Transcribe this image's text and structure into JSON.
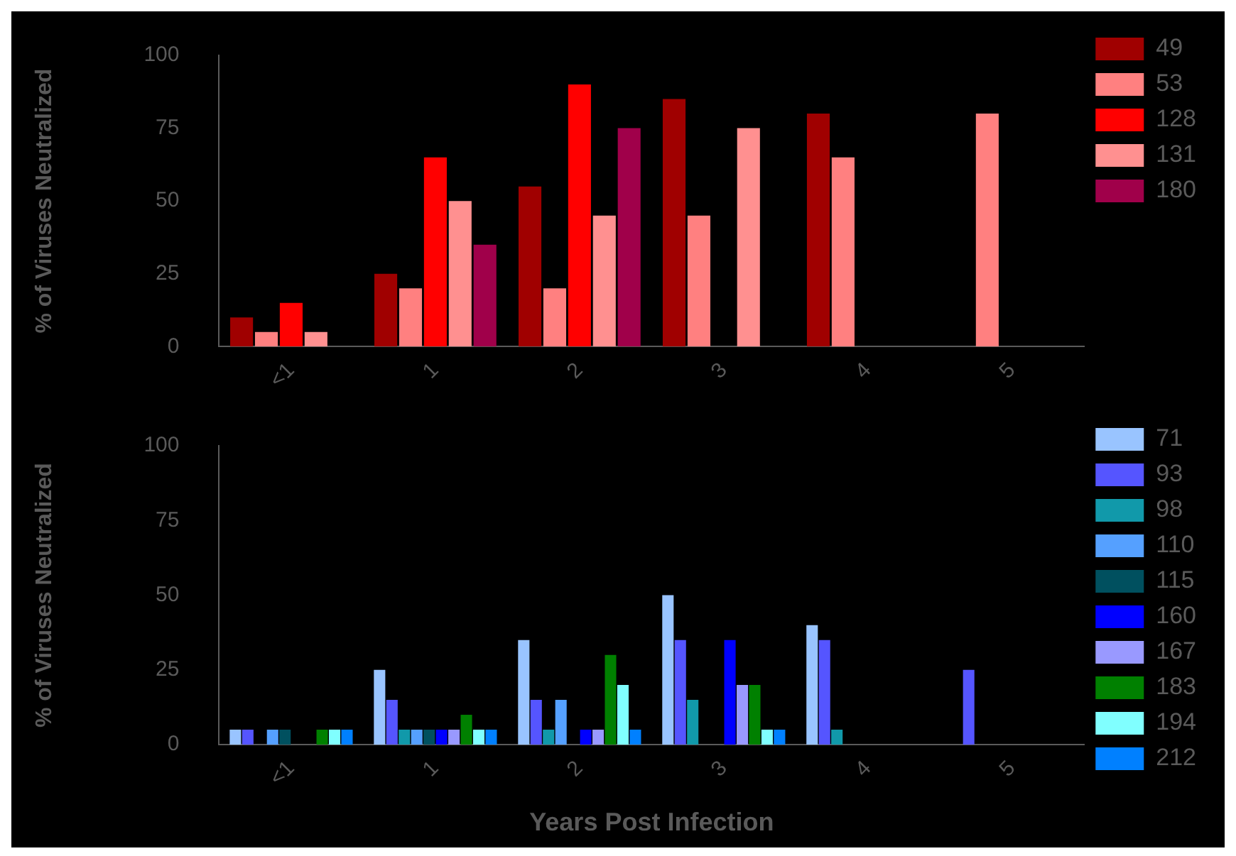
{
  "chart_data": [
    {
      "type": "bar",
      "ylabel": "% of Viruses Neutralized",
      "categories": [
        "<1",
        "1",
        "2",
        "3",
        "4",
        "5"
      ],
      "ylim": [
        0,
        100
      ],
      "yticks": [
        0,
        25,
        50,
        75,
        100
      ],
      "grid": false,
      "legend": "right",
      "series": [
        {
          "name": "49",
          "color": "#a00000",
          "values": [
            10,
            25,
            55,
            85,
            80,
            null
          ]
        },
        {
          "name": "53",
          "color": "#ff8080",
          "values": [
            5,
            20,
            20,
            45,
            65,
            80
          ]
        },
        {
          "name": "128",
          "color": "#ff0000",
          "values": [
            15,
            65,
            90,
            null,
            null,
            null
          ]
        },
        {
          "name": "131",
          "color": "#ff9090",
          "values": [
            5,
            50,
            45,
            75,
            null,
            null
          ]
        },
        {
          "name": "180",
          "color": "#a0004a",
          "values": [
            null,
            35,
            75,
            null,
            null,
            null
          ]
        }
      ]
    },
    {
      "type": "bar",
      "xlabel": "Years Post Infection",
      "ylabel": "% of Viruses Neutralized",
      "categories": [
        "<1",
        "1",
        "2",
        "3",
        "4",
        "5"
      ],
      "ylim": [
        0,
        100
      ],
      "yticks": [
        0,
        25,
        50,
        75,
        100
      ],
      "grid": false,
      "legend": "right",
      "series": [
        {
          "name": "71",
          "color": "#99c4ff",
          "values": [
            5,
            25,
            35,
            50,
            40,
            null
          ]
        },
        {
          "name": "93",
          "color": "#5555ff",
          "values": [
            5,
            15,
            15,
            35,
            35,
            25
          ]
        },
        {
          "name": "98",
          "color": "#1199aa",
          "values": [
            null,
            5,
            5,
            15,
            5,
            null
          ]
        },
        {
          "name": "110",
          "color": "#55a0ff",
          "values": [
            5,
            5,
            15,
            null,
            null,
            null
          ]
        },
        {
          "name": "115",
          "color": "#00505f",
          "values": [
            5,
            5,
            null,
            null,
            null,
            null
          ]
        },
        {
          "name": "160",
          "color": "#0000ff",
          "values": [
            null,
            5,
            5,
            35,
            null,
            null
          ]
        },
        {
          "name": "167",
          "color": "#9999ff",
          "values": [
            null,
            5,
            5,
            20,
            null,
            null
          ]
        },
        {
          "name": "183",
          "color": "#008000",
          "values": [
            5,
            10,
            30,
            20,
            null,
            null
          ]
        },
        {
          "name": "194",
          "color": "#80ffff",
          "values": [
            5,
            5,
            20,
            5,
            null,
            null
          ]
        },
        {
          "name": "212",
          "color": "#0080ff",
          "values": [
            5,
            5,
            5,
            5,
            null,
            null
          ]
        }
      ]
    }
  ]
}
